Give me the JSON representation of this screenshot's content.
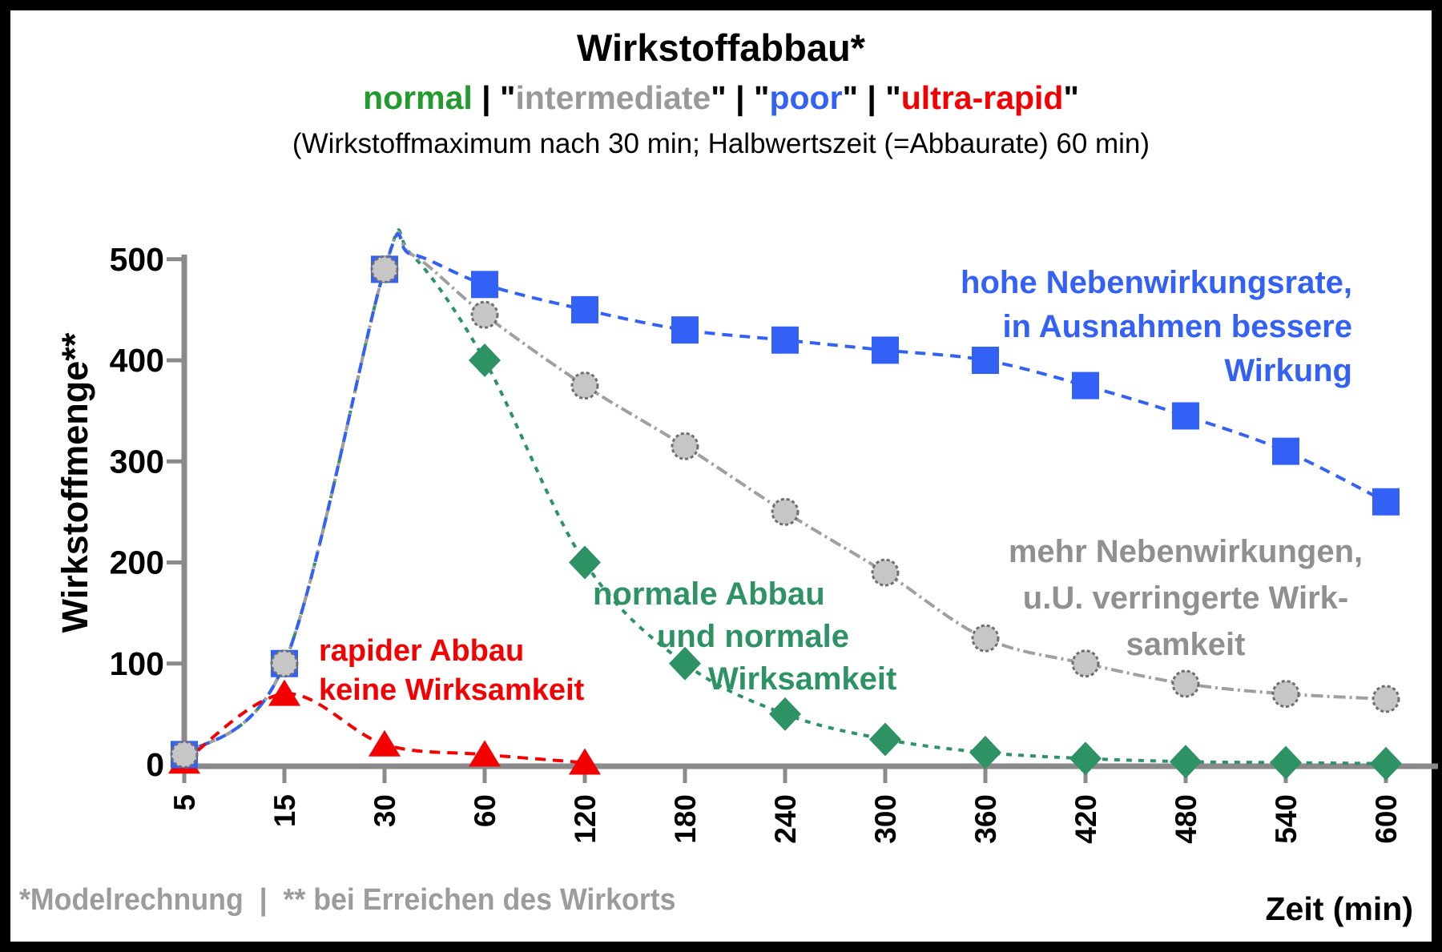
{
  "chart_data": {
    "type": "line",
    "title": "Wirkstoffabbau*",
    "subtitle": "(Wirkstoffmaximum nach 30 min; Halbwertszeit (=Abbaurate) 60 min)",
    "xlabel": "Zeit (min)",
    "ylabel": "Wirkstoffmenge**",
    "x_tick_labels": [
      "5",
      "15",
      "30",
      "60",
      "120",
      "180",
      "240",
      "300",
      "360",
      "420",
      "480",
      "540",
      "600"
    ],
    "y_ticks": [
      0,
      100,
      200,
      300,
      400,
      500
    ],
    "ylim": [
      0,
      500
    ],
    "grid": false,
    "legend_position": "in-title",
    "series": [
      {
        "name": "normal",
        "label": "normal",
        "color": "#2e9364",
        "marker": "diamond",
        "line": "shortdash",
        "marker_start_index": 3,
        "peak_value": 505,
        "values": [
          10,
          100,
          490,
          400,
          200,
          100,
          50,
          25,
          12,
          6,
          3,
          2,
          1
        ]
      },
      {
        "name": "intermediate",
        "label": "\"intermediate\"",
        "color": "#a0a0a0",
        "marker": "circle",
        "marker_fill": "#c6c6c6",
        "marker_stroke": "#6f6f6f",
        "line": "dashdot",
        "marker_start_index": 0,
        "peak_value": 505,
        "values": [
          10,
          100,
          490,
          445,
          375,
          315,
          250,
          190,
          125,
          100,
          80,
          70,
          65
        ]
      },
      {
        "name": "poor",
        "label": "\"poor\"",
        "color": "#3361f5",
        "marker": "square",
        "line": "dash",
        "marker_start_index": 0,
        "peak_value": 505,
        "values": [
          10,
          100,
          490,
          475,
          450,
          430,
          420,
          410,
          400,
          375,
          345,
          310,
          260
        ]
      },
      {
        "name": "ultra-rapid",
        "label": "\"ultra-rapid\"",
        "color": "#f40000",
        "marker": "triangle",
        "line": "dash",
        "marker_start_index": 0,
        "values": [
          3,
          70,
          20,
          10,
          2
        ]
      }
    ]
  },
  "header": {
    "legend_parts": [
      {
        "text": "normal",
        "color": "#229a2e"
      },
      {
        "text": " | ",
        "color": "#000000"
      },
      {
        "text": "\"",
        "color": "#000000"
      },
      {
        "text": "intermediate",
        "color": "#999999"
      },
      {
        "text": "\"",
        "color": "#000000"
      },
      {
        "text": " | ",
        "color": "#000000"
      },
      {
        "text": "\"",
        "color": "#000000"
      },
      {
        "text": "poor",
        "color": "#3361f5"
      },
      {
        "text": "\"",
        "color": "#000000"
      },
      {
        "text": " | ",
        "color": "#000000"
      },
      {
        "text": "\"",
        "color": "#000000"
      },
      {
        "text": "ultra-rapid",
        "color": "#f40000"
      },
      {
        "text": "\"",
        "color": "#000000"
      }
    ]
  },
  "annotations": {
    "poor_note": {
      "color": "#3361f5",
      "lines": [
        "hohe Nebenwirkungsrate,",
        "in Ausnahmen bessere",
        "Wirkung"
      ]
    },
    "intermediate_note": {
      "color": "#909090",
      "lines": [
        "mehr Nebenwirkungen,",
        "u.U. verringerte Wirk-",
        "samkeit"
      ]
    },
    "normal_note": {
      "color": "#2e9364",
      "lines": [
        "normale Abbau",
        "und normale",
        "Wirksamkeit"
      ]
    },
    "ultra_note": {
      "color": "#f40000",
      "lines": [
        "rapider Abbau",
        "keine Wirksamkeit"
      ]
    }
  },
  "footer": {
    "note": "*Modelrechnung  |  ** bei Erreichen des Wirkorts"
  }
}
